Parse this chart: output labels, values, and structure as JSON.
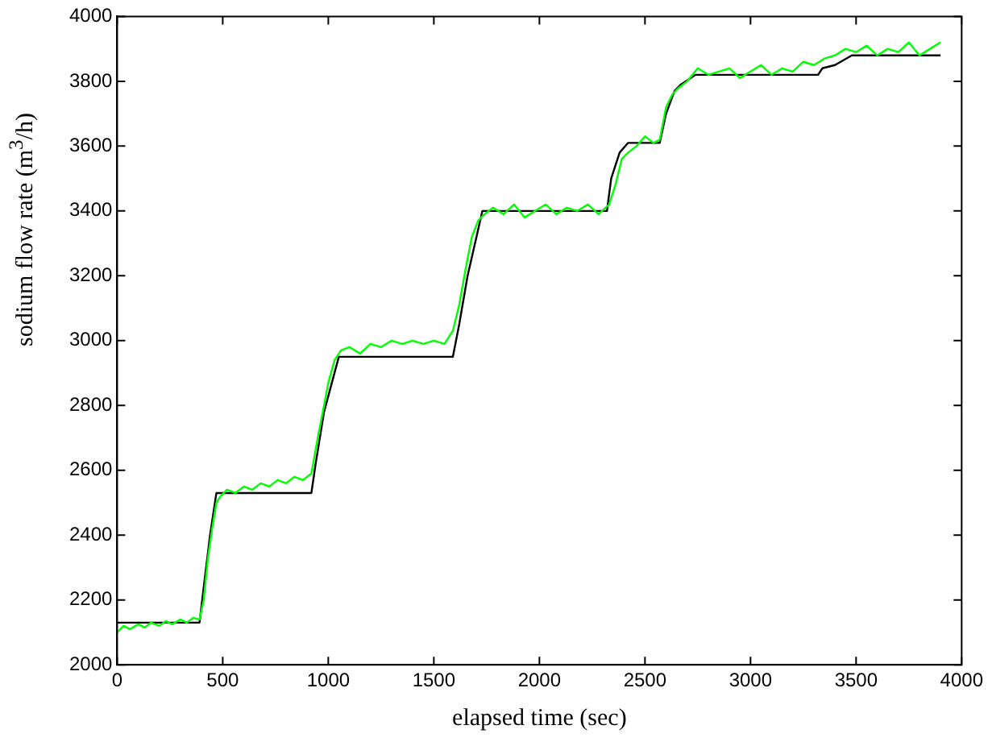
{
  "chart_data": {
    "type": "line",
    "xlabel": "elapsed time (sec)",
    "ylabel": "sodium flow rate (m$^{3}$/h)",
    "xlim": [
      0,
      4000
    ],
    "ylim": [
      2000,
      4000
    ],
    "xticks": [
      0,
      500,
      1000,
      1500,
      2000,
      2500,
      3000,
      3500,
      4000
    ],
    "yticks": [
      2000,
      2200,
      2400,
      2600,
      2800,
      3000,
      3200,
      3400,
      3600,
      3800,
      4000
    ],
    "grid": false,
    "legend": false,
    "marker": "none",
    "line_style": "solid",
    "series": [
      {
        "color": "#00ff00",
        "x": [
          0,
          30,
          60,
          100,
          130,
          160,
          200,
          230,
          260,
          300,
          330,
          360,
          390,
          410,
          430,
          450,
          470,
          490,
          520,
          560,
          600,
          640,
          680,
          720,
          760,
          800,
          840,
          880,
          920,
          950,
          980,
          1000,
          1030,
          1060,
          1100,
          1150,
          1200,
          1250,
          1300,
          1350,
          1400,
          1450,
          1500,
          1550,
          1590,
          1620,
          1650,
          1680,
          1710,
          1740,
          1780,
          1830,
          1880,
          1930,
          1980,
          2030,
          2080,
          2130,
          2180,
          2230,
          2280,
          2330,
          2360,
          2390,
          2420,
          2460,
          2500,
          2540,
          2570,
          2600,
          2630,
          2660,
          2700,
          2750,
          2800,
          2850,
          2900,
          2950,
          3000,
          3050,
          3100,
          3150,
          3200,
          3250,
          3300,
          3350,
          3400,
          3450,
          3500,
          3550,
          3600,
          3650,
          3700,
          3750,
          3800,
          3850,
          3900
        ],
        "values": [
          2100,
          2120,
          2110,
          2125,
          2115,
          2130,
          2120,
          2135,
          2125,
          2140,
          2130,
          2145,
          2140,
          2200,
          2330,
          2420,
          2500,
          2520,
          2540,
          2530,
          2550,
          2540,
          2560,
          2550,
          2570,
          2560,
          2580,
          2570,
          2590,
          2700,
          2800,
          2870,
          2940,
          2970,
          2980,
          2960,
          2990,
          2980,
          3000,
          2990,
          3000,
          2990,
          3000,
          2990,
          3030,
          3110,
          3220,
          3320,
          3370,
          3390,
          3410,
          3390,
          3420,
          3380,
          3400,
          3420,
          3390,
          3410,
          3400,
          3420,
          3390,
          3420,
          3480,
          3560,
          3580,
          3600,
          3630,
          3610,
          3620,
          3720,
          3760,
          3780,
          3800,
          3840,
          3820,
          3830,
          3840,
          3810,
          3830,
          3850,
          3820,
          3840,
          3830,
          3860,
          3850,
          3870,
          3880,
          3900,
          3890,
          3910,
          3880,
          3900,
          3890,
          3920,
          3880,
          3900,
          3920
        ]
      },
      {
        "color": "#000000",
        "x": [
          0,
          390,
          410,
          440,
          470,
          920,
          940,
          980,
          1050,
          1590,
          1620,
          1660,
          1730,
          2320,
          2340,
          2380,
          2420,
          2570,
          2600,
          2640,
          2670,
          2740,
          3320,
          3340,
          3400,
          3480,
          3900
        ],
        "values": [
          2130,
          2130,
          2240,
          2400,
          2530,
          2530,
          2620,
          2780,
          2950,
          2950,
          3050,
          3200,
          3400,
          3400,
          3500,
          3580,
          3610,
          3610,
          3700,
          3770,
          3790,
          3820,
          3820,
          3840,
          3850,
          3880,
          3880
        ]
      }
    ]
  }
}
